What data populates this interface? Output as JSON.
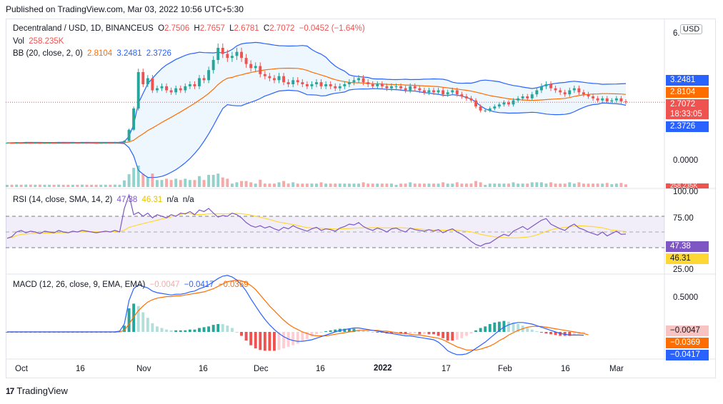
{
  "header": {
    "published": "Published on TradingView.com, Mar 03, 2022 10:56 UTC+5:30"
  },
  "footer": {
    "brand": "TradingView",
    "logo_icon": "tradingview-logo-icon"
  },
  "main": {
    "title": "Decentraland / USD, 1D, BINANCEUS",
    "ohlc": {
      "o_label": "O",
      "o": "2.7506",
      "h_label": "H",
      "h": "2.7657",
      "l_label": "L",
      "l": "2.6781",
      "c_label": "C",
      "c": "2.7072",
      "chg": "−0.0452 (−1.64%)"
    },
    "vol": {
      "label": "Vol",
      "value": "258.235K"
    },
    "bb": {
      "label": "BB (20, close, 2, 0)",
      "basis": "2.8104",
      "upper": "3.2481",
      "lower": "2.3726"
    },
    "currency": "USD"
  },
  "rsi_legend": {
    "label": "RSI (14, close, SMA, 14, 2)",
    "rsi": "47.38",
    "sma": "46.31",
    "na1": "n/a",
    "na2": "n/a"
  },
  "macd_legend": {
    "label": "MACD (12, 26, close, 9, EMA, EMA)",
    "hist": "−0.0047",
    "macd": "−0.0417",
    "signal": "−0.0369"
  },
  "axis": {
    "price_ticks": [
      "6.",
      "0.0000"
    ],
    "rsi_ticks": [
      "100.00",
      "75.00",
      "25.00"
    ],
    "macd_ticks": [
      "0.5000"
    ],
    "time_labels": [
      "Oct",
      "16",
      "Nov",
      "16",
      "Dec",
      "16",
      "2022",
      "17",
      "Feb",
      "16",
      "Mar"
    ],
    "vol_tag": "258.235K"
  },
  "tags": {
    "upper": "3.2481",
    "basis": "2.8104",
    "close": "2.7072",
    "countdown": "18:33:05",
    "lower": "2.3726",
    "rsi": "47.38",
    "rsi_sma": "46.31",
    "macd_hist": "−0.0047",
    "macd_signal": "−0.0369",
    "macd": "−0.0417"
  },
  "colors": {
    "up": "#26a69a",
    "down": "#ef5350",
    "bb_basis": "#ff6d00",
    "bb_band": "#2962ff",
    "rsi": "#7e57c2",
    "rsi_sma": "#fdd835",
    "macd": "#2962ff",
    "signal": "#ff6d00"
  },
  "chart_data": {
    "type": "line",
    "note_series": "approximate close prices (daily) read from chart",
    "x_labels": [
      "Oct",
      "16",
      "Nov",
      "16",
      "Dec",
      "16",
      "2022",
      "17",
      "Feb",
      "16",
      "Mar"
    ],
    "series": [
      {
        "name": "close",
        "values": [
          0.7,
          0.69,
          0.71,
          0.7,
          0.72,
          0.7,
          0.71,
          0.69,
          0.7,
          0.71,
          0.7,
          0.72,
          0.71,
          0.7,
          0.71,
          0.7,
          0.72,
          0.71,
          0.7,
          0.69,
          0.7,
          0.71,
          0.7,
          0.72,
          0.73,
          0.8,
          1.35,
          2.4,
          4.2,
          3.6,
          3.9,
          3.3,
          3.4,
          3.5,
          3.3,
          3.2,
          3.4,
          3.3,
          3.5,
          3.6,
          3.5,
          3.9,
          3.8,
          4.3,
          4.8,
          5.4,
          5.1,
          4.9,
          5.0,
          5.2,
          4.9,
          4.6,
          4.4,
          4.5,
          4.1,
          4.0,
          3.9,
          3.8,
          4.0,
          3.7,
          3.6,
          3.8,
          3.7,
          3.6,
          3.5,
          3.6,
          3.7,
          3.5,
          3.6,
          3.5,
          3.4,
          3.5,
          3.6,
          3.7,
          3.8,
          3.9,
          3.7,
          3.6,
          3.5,
          3.6,
          3.5,
          3.4,
          3.5,
          3.5,
          3.4,
          3.3,
          3.5,
          3.4,
          3.3,
          3.2,
          3.3,
          3.2,
          3.3,
          3.1,
          3.2,
          3.3,
          3.1,
          3.0,
          2.9,
          2.8,
          2.5,
          2.3,
          2.3,
          2.4,
          2.5,
          2.6,
          2.7,
          2.6,
          2.8,
          2.9,
          3.0,
          2.9,
          3.1,
          3.3,
          3.5,
          3.6,
          3.4,
          3.3,
          3.2,
          3.1,
          3.3,
          3.4,
          3.2,
          3.1,
          3.0,
          2.9,
          2.8,
          2.9,
          2.75,
          2.8,
          2.9,
          2.75,
          2.71
        ]
      },
      {
        "name": "rsi",
        "values": [
          42,
          44,
          50,
          52,
          49,
          51,
          50,
          48,
          51,
          50,
          49,
          52,
          50,
          49,
          51,
          50,
          52,
          51,
          50,
          49,
          50,
          51,
          50,
          52,
          50,
          80,
          97,
          72,
          75,
          70,
          74,
          68,
          72,
          70,
          68,
          72,
          70,
          74,
          73,
          76,
          72,
          78,
          76,
          80,
          74,
          69,
          71,
          70,
          74,
          72,
          68,
          62,
          58,
          56,
          58,
          55,
          57,
          54,
          52,
          56,
          54,
          58,
          55,
          53,
          51,
          54,
          56,
          52,
          54,
          53,
          51,
          55,
          57,
          60,
          59,
          62,
          57,
          54,
          52,
          55,
          53,
          50,
          54,
          55,
          52,
          50,
          55,
          53,
          52,
          51,
          53,
          51,
          53,
          49,
          52,
          54,
          50,
          47,
          43,
          38,
          34,
          32,
          35,
          36,
          40,
          44,
          47,
          45,
          51,
          54,
          57,
          53,
          57,
          61,
          65,
          67,
          60,
          57,
          54,
          52,
          57,
          60,
          55,
          53,
          50,
          48,
          46,
          50,
          45,
          48,
          51,
          47,
          47.38
        ]
      },
      {
        "name": "macd",
        "values": [
          0.0,
          0.0,
          0.0,
          0.0,
          0.0,
          0.0,
          0.0,
          0.0,
          0.0,
          0.0,
          0.0,
          0.0,
          0.0,
          0.0,
          0.0,
          0.0,
          0.0,
          0.0,
          0.0,
          0.0,
          0.0,
          0.0,
          0.0,
          0.0,
          0.01,
          0.1,
          0.4,
          0.55,
          0.6,
          0.58,
          0.56,
          0.52,
          0.5,
          0.49,
          0.48,
          0.47,
          0.48,
          0.48,
          0.49,
          0.51,
          0.52,
          0.55,
          0.57,
          0.6,
          0.64,
          0.68,
          0.71,
          0.72,
          0.7,
          0.66,
          0.6,
          0.52,
          0.42,
          0.33,
          0.24,
          0.16,
          0.09,
          0.03,
          -0.02,
          -0.06,
          -0.09,
          -0.11,
          -0.12,
          -0.12,
          -0.11,
          -0.1,
          -0.08,
          -0.06,
          -0.04,
          -0.02,
          0.0,
          0.02,
          0.03,
          0.04,
          0.05,
          0.05,
          0.04,
          0.03,
          0.02,
          0.01,
          0.0,
          -0.01,
          -0.02,
          -0.03,
          -0.04,
          -0.05,
          -0.05,
          -0.06,
          -0.07,
          -0.08,
          -0.09,
          -0.1,
          -0.13,
          -0.18,
          -0.24,
          -0.27,
          -0.29,
          -0.29,
          -0.28,
          -0.25,
          -0.21,
          -0.17,
          -0.13,
          -0.08,
          -0.03,
          0.02,
          0.06,
          0.09,
          0.11,
          0.12,
          0.12,
          0.11,
          0.1,
          0.08,
          0.06,
          0.04,
          0.02,
          0.0,
          -0.02,
          -0.03,
          -0.04,
          -0.04,
          -0.04,
          -0.0417
        ]
      },
      {
        "name": "signal",
        "values": [
          0.0,
          0.0,
          0.0,
          0.0,
          0.0,
          0.0,
          0.0,
          0.0,
          0.0,
          0.0,
          0.0,
          0.0,
          0.0,
          0.0,
          0.0,
          0.0,
          0.0,
          0.0,
          0.0,
          0.0,
          0.0,
          0.0,
          0.0,
          0.0,
          0.0,
          0.02,
          0.1,
          0.19,
          0.27,
          0.33,
          0.38,
          0.41,
          0.43,
          0.44,
          0.45,
          0.45,
          0.46,
          0.46,
          0.47,
          0.48,
          0.49,
          0.5,
          0.51,
          0.53,
          0.55,
          0.58,
          0.61,
          0.64,
          0.65,
          0.66,
          0.65,
          0.63,
          0.59,
          0.54,
          0.47,
          0.4,
          0.33,
          0.27,
          0.21,
          0.15,
          0.1,
          0.06,
          0.03,
          0.0,
          -0.02,
          -0.04,
          -0.05,
          -0.05,
          -0.05,
          -0.04,
          -0.03,
          -0.02,
          -0.01,
          0.0,
          0.01,
          0.02,
          0.02,
          0.02,
          0.02,
          0.02,
          0.01,
          0.01,
          0.0,
          -0.01,
          -0.02,
          -0.02,
          -0.03,
          -0.04,
          -0.04,
          -0.05,
          -0.06,
          -0.07,
          -0.08,
          -0.1,
          -0.13,
          -0.16,
          -0.19,
          -0.21,
          -0.23,
          -0.23,
          -0.23,
          -0.22,
          -0.2,
          -0.18,
          -0.15,
          -0.11,
          -0.08,
          -0.04,
          -0.01,
          0.02,
          0.04,
          0.06,
          0.07,
          0.07,
          0.07,
          0.06,
          0.05,
          0.04,
          0.03,
          0.02,
          0.01,
          0.0,
          -0.01,
          -0.02,
          -0.0369
        ]
      }
    ]
  }
}
